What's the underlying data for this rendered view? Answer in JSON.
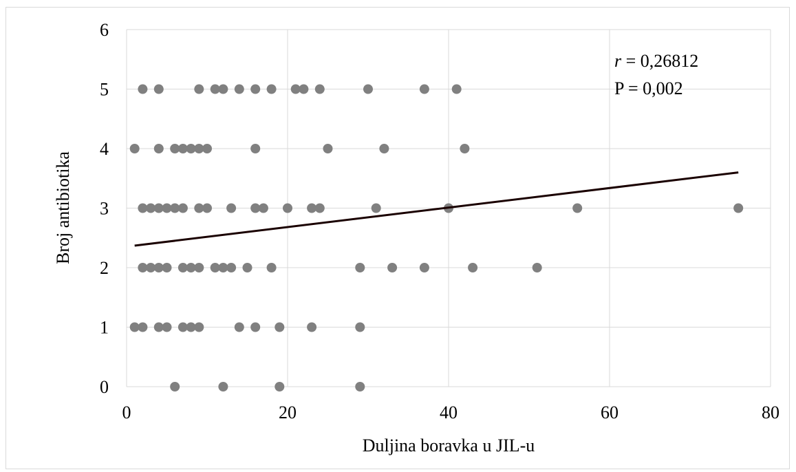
{
  "chart_data": {
    "type": "scatter",
    "xlabel": "Duljina boravka u JIL-u",
    "ylabel": "Broj antibiotika",
    "xlim": [
      0,
      80
    ],
    "ylim": [
      0,
      6
    ],
    "x_ticks": [
      "0",
      "20",
      "40",
      "60",
      "80"
    ],
    "y_ticks": [
      "0",
      "1",
      "2",
      "3",
      "4",
      "5",
      "6"
    ],
    "grid": true,
    "legend": "none",
    "annotation": {
      "r_symbol": "r",
      "r_value": " = 0,26812",
      "p_text": "P = 0,002"
    },
    "point_color": "#808080",
    "trendline": {
      "color": "#1a0000",
      "x": [
        1,
        76
      ],
      "y": [
        2.37,
        3.6
      ]
    },
    "points": [
      {
        "x": 6,
        "y": 0
      },
      {
        "x": 12,
        "y": 0
      },
      {
        "x": 19,
        "y": 0
      },
      {
        "x": 29,
        "y": 0
      },
      {
        "x": 1,
        "y": 1
      },
      {
        "x": 2,
        "y": 1
      },
      {
        "x": 4,
        "y": 1
      },
      {
        "x": 5,
        "y": 1
      },
      {
        "x": 7,
        "y": 1
      },
      {
        "x": 8,
        "y": 1
      },
      {
        "x": 9,
        "y": 1
      },
      {
        "x": 14,
        "y": 1
      },
      {
        "x": 16,
        "y": 1
      },
      {
        "x": 19,
        "y": 1
      },
      {
        "x": 23,
        "y": 1
      },
      {
        "x": 29,
        "y": 1
      },
      {
        "x": 2,
        "y": 2
      },
      {
        "x": 3,
        "y": 2
      },
      {
        "x": 4,
        "y": 2
      },
      {
        "x": 5,
        "y": 2
      },
      {
        "x": 7,
        "y": 2
      },
      {
        "x": 8,
        "y": 2
      },
      {
        "x": 9,
        "y": 2
      },
      {
        "x": 11,
        "y": 2
      },
      {
        "x": 12,
        "y": 2
      },
      {
        "x": 13,
        "y": 2
      },
      {
        "x": 15,
        "y": 2
      },
      {
        "x": 18,
        "y": 2
      },
      {
        "x": 29,
        "y": 2
      },
      {
        "x": 33,
        "y": 2
      },
      {
        "x": 37,
        "y": 2
      },
      {
        "x": 43,
        "y": 2
      },
      {
        "x": 51,
        "y": 2
      },
      {
        "x": 2,
        "y": 3
      },
      {
        "x": 3,
        "y": 3
      },
      {
        "x": 4,
        "y": 3
      },
      {
        "x": 5,
        "y": 3
      },
      {
        "x": 6,
        "y": 3
      },
      {
        "x": 7,
        "y": 3
      },
      {
        "x": 9,
        "y": 3
      },
      {
        "x": 10,
        "y": 3
      },
      {
        "x": 13,
        "y": 3
      },
      {
        "x": 16,
        "y": 3
      },
      {
        "x": 17,
        "y": 3
      },
      {
        "x": 20,
        "y": 3
      },
      {
        "x": 23,
        "y": 3
      },
      {
        "x": 24,
        "y": 3
      },
      {
        "x": 31,
        "y": 3
      },
      {
        "x": 40,
        "y": 3
      },
      {
        "x": 56,
        "y": 3
      },
      {
        "x": 76,
        "y": 3
      },
      {
        "x": 1,
        "y": 4
      },
      {
        "x": 4,
        "y": 4
      },
      {
        "x": 6,
        "y": 4
      },
      {
        "x": 7,
        "y": 4
      },
      {
        "x": 8,
        "y": 4
      },
      {
        "x": 9,
        "y": 4
      },
      {
        "x": 10,
        "y": 4
      },
      {
        "x": 16,
        "y": 4
      },
      {
        "x": 25,
        "y": 4
      },
      {
        "x": 32,
        "y": 4
      },
      {
        "x": 42,
        "y": 4
      },
      {
        "x": 2,
        "y": 5
      },
      {
        "x": 4,
        "y": 5
      },
      {
        "x": 9,
        "y": 5
      },
      {
        "x": 11,
        "y": 5
      },
      {
        "x": 12,
        "y": 5
      },
      {
        "x": 14,
        "y": 5
      },
      {
        "x": 16,
        "y": 5
      },
      {
        "x": 18,
        "y": 5
      },
      {
        "x": 21,
        "y": 5
      },
      {
        "x": 22,
        "y": 5
      },
      {
        "x": 24,
        "y": 5
      },
      {
        "x": 30,
        "y": 5
      },
      {
        "x": 37,
        "y": 5
      },
      {
        "x": 41,
        "y": 5
      }
    ]
  }
}
